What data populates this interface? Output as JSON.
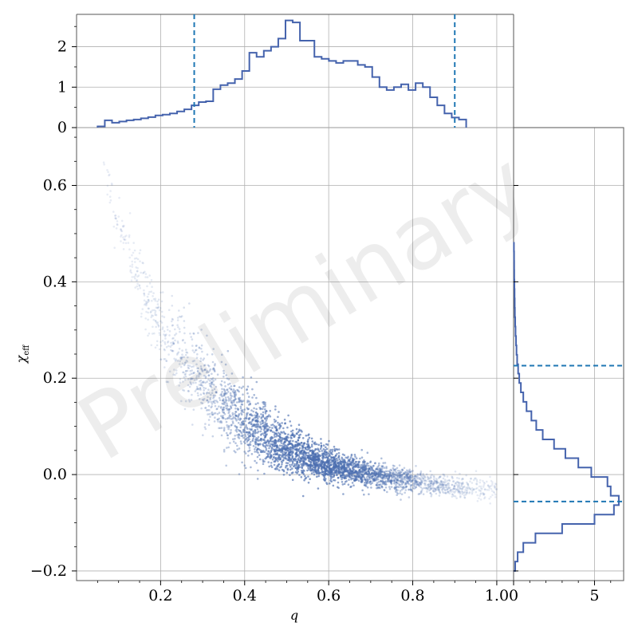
{
  "colors": {
    "points": "#4c6fb0",
    "hist": "#4563ad",
    "quantile": "#1f77b4",
    "grid": "#b0b0b0",
    "axis": "#555555"
  },
  "watermark": "Preliminary",
  "chart_data": [
    {
      "type": "scatter",
      "xlabel": "q",
      "ylabel": "χ_eff",
      "ylabel_main": "χ",
      "ylabel_sub": "eff",
      "xlim": [
        0.0,
        1.04
      ],
      "ylim": [
        -0.22,
        0.72
      ],
      "xticks": [
        0.2,
        0.4,
        0.6,
        0.8,
        1.0
      ],
      "yticks": [
        -0.2,
        0.0,
        0.2,
        0.4,
        0.6
      ],
      "xtick_labels": [
        "0.2",
        "0.4",
        "0.6",
        "0.8",
        "1.0"
      ],
      "ytick_labels": [
        "−0.2",
        "0.0",
        "0.2",
        "0.4",
        "0.6"
      ],
      "grid": true,
      "trend": {
        "description": "dense cloud decreasing from about 0.6 at q≈0.08 to about −0.03 at q≈1.0",
        "x": [
          0.06,
          0.08,
          0.1,
          0.15,
          0.2,
          0.3,
          0.4,
          0.5,
          0.6,
          0.7,
          0.8,
          0.9,
          1.0
        ],
        "y": [
          0.68,
          0.58,
          0.52,
          0.4,
          0.3,
          0.19,
          0.11,
          0.05,
          0.02,
          0.0,
          -0.015,
          -0.025,
          -0.03
        ]
      }
    },
    {
      "type": "histogram",
      "orientation": "vertical",
      "xlim": [
        0.0,
        1.04
      ],
      "ylim": [
        0,
        2.8
      ],
      "yticks": [
        0,
        1,
        2
      ],
      "ytick_labels": [
        "0",
        "1",
        "2"
      ],
      "bin_start": 0.05,
      "bin_width": 0.0172,
      "values": [
        0.03,
        0.18,
        0.12,
        0.15,
        0.18,
        0.2,
        0.23,
        0.26,
        0.3,
        0.32,
        0.35,
        0.4,
        0.45,
        0.55,
        0.63,
        0.65,
        0.95,
        1.05,
        1.1,
        1.2,
        1.4,
        1.85,
        1.75,
        1.9,
        2.0,
        2.2,
        2.65,
        2.6,
        2.15,
        2.15,
        1.75,
        1.7,
        1.65,
        1.6,
        1.65,
        1.65,
        1.55,
        1.5,
        1.25,
        1.0,
        0.93,
        1.0,
        1.07,
        0.93,
        1.1,
        1.0,
        0.75,
        0.55,
        0.35,
        0.25,
        0.2
      ],
      "quantiles": [
        0.28,
        0.9
      ]
    },
    {
      "type": "histogram",
      "orientation": "horizontal",
      "ylim": [
        -0.22,
        0.72
      ],
      "xlim": [
        0,
        6.8
      ],
      "xticks": [
        0,
        5
      ],
      "xtick_labels": [
        "0",
        "5"
      ],
      "bin_start": -0.2,
      "bin_width": 0.0195,
      "values": [
        0.1,
        0.25,
        0.6,
        1.35,
        3.0,
        5.0,
        6.2,
        6.5,
        6.0,
        5.8,
        4.8,
        4.0,
        3.2,
        2.5,
        1.8,
        1.4,
        1.1,
        0.8,
        0.6,
        0.45,
        0.35,
        0.28,
        0.22,
        0.18,
        0.15,
        0.12,
        0.1,
        0.08,
        0.07,
        0.06,
        0.05,
        0.04,
        0.035,
        0.03,
        0.02
      ],
      "quantiles": [
        -0.056,
        0.226
      ]
    }
  ]
}
